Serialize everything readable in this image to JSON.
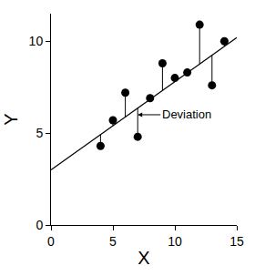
{
  "chart_data": {
    "type": "scatter",
    "x": [
      4,
      5,
      6,
      7,
      8,
      9,
      10,
      11,
      12,
      13,
      14
    ],
    "values": [
      4.3,
      5.7,
      7.2,
      4.8,
      6.9,
      8.8,
      8.0,
      8.3,
      10.9,
      7.6,
      10.0
    ],
    "color": "#000000",
    "fit_line": {
      "x": [
        0,
        15
      ],
      "y": [
        3,
        10.2
      ]
    },
    "xlabel": "X",
    "ylabel": "Y",
    "xlim": [
      0,
      15
    ],
    "ylim": [
      0,
      11.5
    ],
    "xticks": [
      0,
      5,
      10,
      15
    ],
    "yticks": [
      0,
      5,
      10
    ],
    "grid": false,
    "annotations": [
      {
        "text": "Deviation",
        "x": 7,
        "y": 6.0
      }
    ]
  }
}
